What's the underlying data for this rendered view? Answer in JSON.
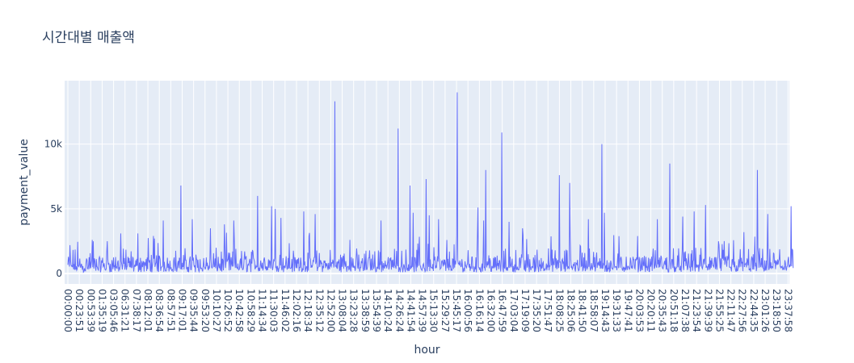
{
  "chart_data": {
    "type": "line",
    "title": "시간대별 매출액",
    "xlabel": "hour",
    "ylabel": "payment_value",
    "x_ticks": [
      "00:00:00",
      "00:23:51",
      "00:53:39",
      "01:35:19",
      "03:05:46",
      "06:31:21",
      "07:38:17",
      "08:12:01",
      "08:36:54",
      "08:57:51",
      "09:17:01",
      "09:35:44",
      "09:53:20",
      "10:10:27",
      "10:26:52",
      "10:42:58",
      "10:58:29",
      "11:14:34",
      "11:30:03",
      "11:46:02",
      "12:02:16",
      "12:18:34",
      "12:35:12",
      "12:52:00",
      "13:08:04",
      "13:23:28",
      "13:38:59",
      "13:54:39",
      "14:10:24",
      "14:26:24",
      "14:41:54",
      "14:57:39",
      "15:13:30",
      "15:29:27",
      "15:45:17",
      "16:00:56",
      "16:16:14",
      "16:32:00",
      "16:47:59",
      "17:03:04",
      "17:19:09",
      "17:35:20",
      "17:51:47",
      "18:08:25",
      "18:25:06",
      "18:41:50",
      "18:58:07",
      "19:14:43",
      "19:31:33",
      "19:47:41",
      "20:03:53",
      "20:20:11",
      "20:35:43",
      "20:51:18",
      "21:07:38",
      "21:23:54",
      "21:39:39",
      "21:55:25",
      "22:11:47",
      "22:27:56",
      "22:44:35",
      "23:01:26",
      "23:18:50",
      "23:37:58"
    ],
    "y_ticks": [
      {
        "value": 0,
        "label": "0"
      },
      {
        "value": 5000,
        "label": "5k"
      },
      {
        "value": 10000,
        "label": "10k"
      }
    ],
    "ylim": [
      -800,
      14900
    ],
    "grid": true,
    "series": [
      {
        "color": "#636efa"
      }
    ],
    "peaks": [
      {
        "tick_pos": 0.2,
        "value": 2200
      },
      {
        "tick_pos": 2.1,
        "value": 2600
      },
      {
        "tick_pos": 3.4,
        "value": 2500
      },
      {
        "tick_pos": 4.6,
        "value": 3100
      },
      {
        "tick_pos": 6.1,
        "value": 3100
      },
      {
        "tick_pos": 8.3,
        "value": 4100
      },
      {
        "tick_pos": 9.8,
        "value": 6800
      },
      {
        "tick_pos": 10.8,
        "value": 4200
      },
      {
        "tick_pos": 12.4,
        "value": 3500
      },
      {
        "tick_pos": 13.6,
        "value": 3800
      },
      {
        "tick_pos": 14.4,
        "value": 4100
      },
      {
        "tick_pos": 16.5,
        "value": 6000
      },
      {
        "tick_pos": 17.7,
        "value": 5200
      },
      {
        "tick_pos": 18.0,
        "value": 5000
      },
      {
        "tick_pos": 18.5,
        "value": 4300
      },
      {
        "tick_pos": 20.5,
        "value": 4800
      },
      {
        "tick_pos": 21.5,
        "value": 4600
      },
      {
        "tick_pos": 23.2,
        "value": 13300
      },
      {
        "tick_pos": 24.5,
        "value": 2600
      },
      {
        "tick_pos": 27.2,
        "value": 4100
      },
      {
        "tick_pos": 28.7,
        "value": 11200
      },
      {
        "tick_pos": 29.7,
        "value": 6800
      },
      {
        "tick_pos": 30.0,
        "value": 4700
      },
      {
        "tick_pos": 31.1,
        "value": 7300
      },
      {
        "tick_pos": 31.4,
        "value": 4500
      },
      {
        "tick_pos": 32.2,
        "value": 4200
      },
      {
        "tick_pos": 33.8,
        "value": 14000
      },
      {
        "tick_pos": 35.6,
        "value": 5100
      },
      {
        "tick_pos": 36.1,
        "value": 4100
      },
      {
        "tick_pos": 36.3,
        "value": 8000
      },
      {
        "tick_pos": 37.7,
        "value": 10900
      },
      {
        "tick_pos": 38.3,
        "value": 4000
      },
      {
        "tick_pos": 39.5,
        "value": 3500
      },
      {
        "tick_pos": 42.7,
        "value": 7600
      },
      {
        "tick_pos": 43.6,
        "value": 7000
      },
      {
        "tick_pos": 45.2,
        "value": 4200
      },
      {
        "tick_pos": 46.4,
        "value": 10000
      },
      {
        "tick_pos": 46.6,
        "value": 4700
      },
      {
        "tick_pos": 51.2,
        "value": 4200
      },
      {
        "tick_pos": 52.3,
        "value": 8500
      },
      {
        "tick_pos": 53.4,
        "value": 4400
      },
      {
        "tick_pos": 54.4,
        "value": 4800
      },
      {
        "tick_pos": 55.4,
        "value": 5300
      },
      {
        "tick_pos": 58.7,
        "value": 3200
      },
      {
        "tick_pos": 59.9,
        "value": 8000
      },
      {
        "tick_pos": 60.8,
        "value": 4600
      },
      {
        "tick_pos": 62.8,
        "value": 5200
      },
      {
        "tick_pos": 63.5,
        "value": 2600
      }
    ]
  }
}
